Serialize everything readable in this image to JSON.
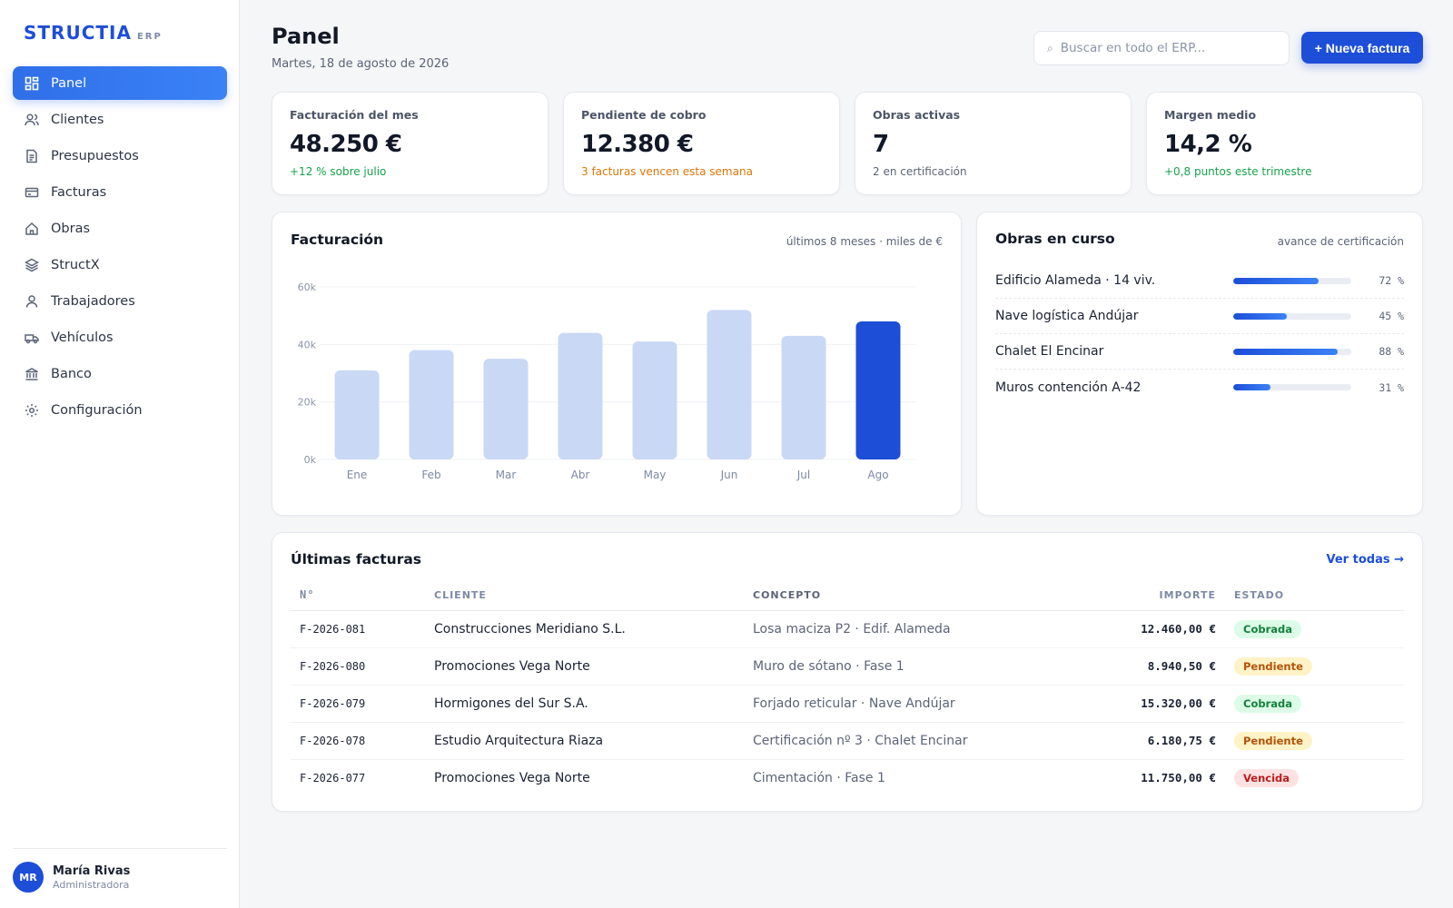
{
  "brand": {
    "name": "STRUCTIA",
    "sub": "ERP"
  },
  "nav": [
    {
      "label": "Panel",
      "icon": "dashboard-icon",
      "active": true
    },
    {
      "label": "Clientes",
      "icon": "users-icon"
    },
    {
      "label": "Presupuestos",
      "icon": "document-icon"
    },
    {
      "label": "Facturas",
      "icon": "invoice-icon"
    },
    {
      "label": "Obras",
      "icon": "home-icon"
    },
    {
      "label": "StructX",
      "icon": "layers-icon"
    },
    {
      "label": "Trabajadores",
      "icon": "user-icon"
    },
    {
      "label": "Vehículos",
      "icon": "truck-icon"
    },
    {
      "label": "Banco",
      "icon": "bank-icon"
    },
    {
      "label": "Configuración",
      "icon": "gear-icon"
    }
  ],
  "user": {
    "initials": "MR",
    "name": "María Rivas",
    "role": "Administradora"
  },
  "header": {
    "title": "Panel",
    "date": "Martes, 18 de agosto de 2026",
    "search_placeholder": "Buscar en todo el ERP...",
    "new_invoice_label": "+ Nueva factura"
  },
  "kpis": [
    {
      "label": "Facturación del mes",
      "value": "48.250 €",
      "sub": "+12 % sobre julio",
      "tone": "green"
    },
    {
      "label": "Pendiente de cobro",
      "value": "12.380 €",
      "sub": "3 facturas vencen esta semana",
      "tone": "orange"
    },
    {
      "label": "Obras activas",
      "value": "7",
      "sub": "2 en certificación",
      "tone": "muted"
    },
    {
      "label": "Margen medio",
      "value": "14,2 %",
      "sub": "+0,8 puntos este trimestre",
      "tone": "green"
    }
  ],
  "billing_card": {
    "title": "Facturación",
    "meta": "últimos 8 meses · miles de €"
  },
  "chart_data": {
    "type": "bar",
    "title": "Facturación",
    "categories": [
      "Ene",
      "Feb",
      "Mar",
      "Abr",
      "May",
      "Jun",
      "Jul",
      "Ago"
    ],
    "values": [
      31,
      38,
      35,
      44,
      41,
      52,
      43,
      48
    ],
    "ytick_labels": [
      "0k",
      "20k",
      "40k",
      "60k"
    ],
    "yticks": [
      0,
      20,
      40,
      60
    ],
    "ylim": [
      0,
      60
    ],
    "highlight_index": 7,
    "colors": {
      "bar": "#c9d8f5",
      "highlight": "#1d4ed8"
    },
    "grid": true
  },
  "works_card": {
    "title": "Obras en curso",
    "meta": "avance de certificación",
    "items": [
      {
        "name": "Edificio Alameda · 14 viv.",
        "progress": 72,
        "pct_label": "72 %"
      },
      {
        "name": "Nave logística Andújar",
        "progress": 45,
        "pct_label": "45 %"
      },
      {
        "name": "Chalet El Encinar",
        "progress": 88,
        "pct_label": "88 %"
      },
      {
        "name": "Muros contención A-42",
        "progress": 31,
        "pct_label": "31 %"
      }
    ]
  },
  "invoices": {
    "title": "Últimas facturas",
    "link": "Ver todas →",
    "columns": [
      "N°",
      "CLIENTE",
      "CONCEPTO",
      "IMPORTE",
      "ESTADO"
    ],
    "rows": [
      {
        "num": "F-2026-081",
        "client": "Construcciones Meridiano S.L.",
        "concept": "Losa maciza P2 · Edif. Alameda",
        "amount": "12.460,00 €",
        "status": "Cobrada",
        "status_type": "paid"
      },
      {
        "num": "F-2026-080",
        "client": "Promociones Vega Norte",
        "concept": "Muro de sótano · Fase 1",
        "amount": "8.940,50 €",
        "status": "Pendiente",
        "status_type": "pending"
      },
      {
        "num": "F-2026-079",
        "client": "Hormigones del Sur S.A.",
        "concept": "Forjado reticular · Nave Andújar",
        "amount": "15.320,00 €",
        "status": "Cobrada",
        "status_type": "paid"
      },
      {
        "num": "F-2026-078",
        "client": "Estudio Arquitectura Riaza",
        "concept": "Certificación nº 3 · Chalet Encinar",
        "amount": "6.180,75 €",
        "status": "Pendiente",
        "status_type": "pending"
      },
      {
        "num": "F-2026-077",
        "client": "Promociones Vega Norte",
        "concept": "Cimentación · Fase 1",
        "amount": "11.750,00 €",
        "status": "Vencida",
        "status_type": "overdue"
      }
    ]
  }
}
